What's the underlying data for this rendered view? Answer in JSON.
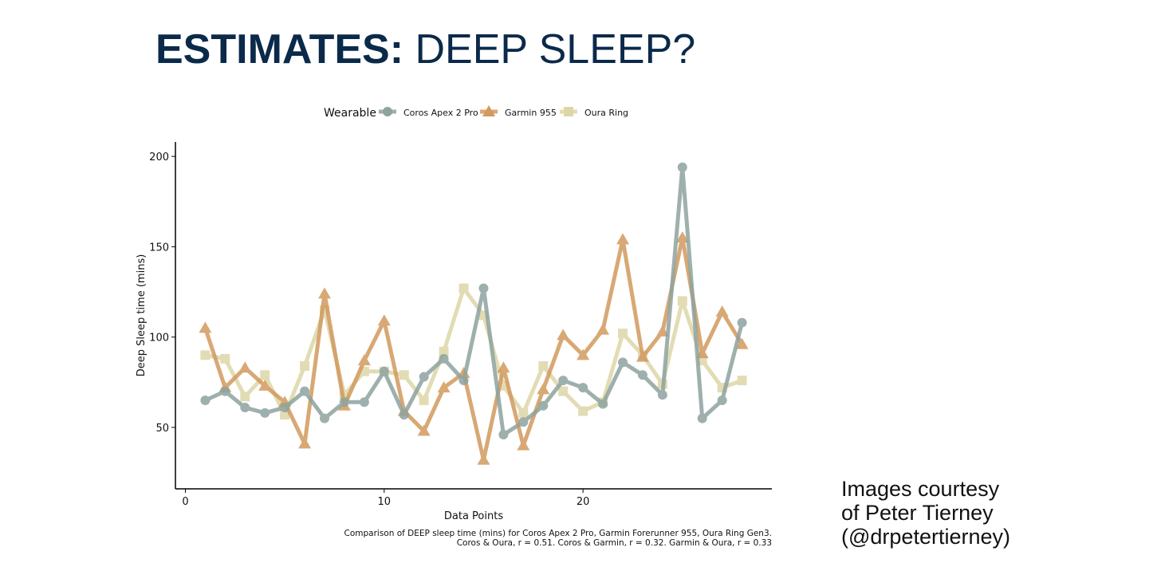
{
  "slide": {
    "title_bold": "ESTIMATES:",
    "title_rest": "DEEP SLEEP?",
    "credit_lines": [
      "Images courtesy",
      "of Peter Tierney",
      "(@drpetertierney)"
    ]
  },
  "colors": {
    "title": "#0b2a4a",
    "coros": "#8ea39f",
    "garmin": "#d29a5e",
    "oura": "#ddd7a8"
  },
  "chart_data": {
    "type": "line",
    "xlabel": "Data Points",
    "ylabel": "Deep Sleep time (mins)",
    "legend_title": "Wearable",
    "legend_position": "top",
    "xlim": [
      -0.5,
      29.5
    ],
    "ylim": [
      16,
      208
    ],
    "x_ticks": [
      0,
      10,
      20
    ],
    "y_ticks": [
      50,
      100,
      150,
      200
    ],
    "grid": false,
    "x": [
      1,
      2,
      3,
      4,
      5,
      6,
      7,
      8,
      9,
      10,
      11,
      12,
      13,
      14,
      15,
      16,
      17,
      18,
      19,
      20,
      21,
      22,
      23,
      24,
      25,
      26,
      27,
      28
    ],
    "series": [
      {
        "name": "Coros Apex 2 Pro",
        "marker": "circle",
        "color": "#8ea39f",
        "values": [
          65,
          70,
          61,
          58,
          61,
          70,
          55,
          64,
          64,
          81,
          57,
          78,
          88,
          76,
          127,
          46,
          53,
          62,
          76,
          72,
          63,
          86,
          79,
          68,
          194,
          55,
          65,
          108
        ]
      },
      {
        "name": "Garmin 955",
        "marker": "triangle",
        "color": "#d29a5e",
        "values": [
          105,
          72,
          83,
          73,
          64,
          41,
          124,
          62,
          87,
          109,
          59,
          48,
          72,
          80,
          32,
          83,
          40,
          71,
          101,
          90,
          104,
          154,
          89,
          103,
          155,
          91,
          114,
          96
        ]
      },
      {
        "name": "Oura Ring",
        "marker": "square",
        "color": "#ddd7a8",
        "values": [
          90,
          88,
          67,
          79,
          57,
          84,
          115,
          68,
          81,
          81,
          79,
          65,
          92,
          127,
          112,
          73,
          58,
          84,
          70,
          59,
          64,
          102,
          90,
          74,
          120,
          87,
          72,
          76
        ]
      }
    ],
    "caption": [
      "Comparison of DEEP sleep time (mins) for Coros Apex 2 Pro, Garmin Forerunner 955, Oura Ring Gen3.",
      "Coros & Oura, r = 0.51. Coros & Garmin, r = 0.32. Garmin & Oura, r = 0.33"
    ]
  }
}
